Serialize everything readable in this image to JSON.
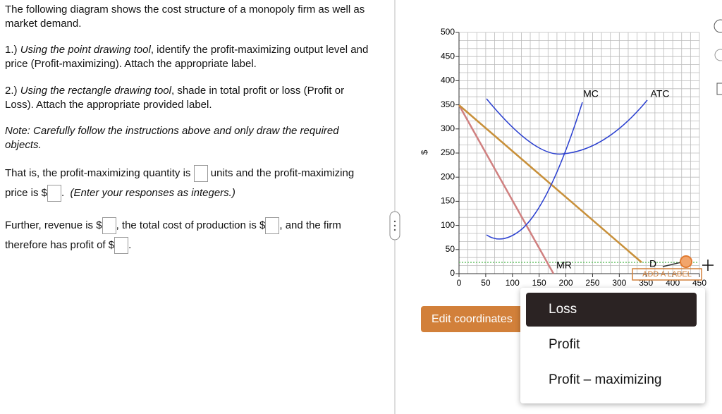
{
  "instructions": {
    "intro": "The following diagram shows the cost structure of a monopoly firm as well as market demand.",
    "step1": {
      "number": "1.)",
      "tool": "Using the point drawing tool",
      "text": ", identify the profit-maximizing output level and price (Profit-maximizing). Attach the appropriate label."
    },
    "step2": {
      "number": "2.)",
      "tool": "Using the rectangle drawing tool",
      "text": ", shade in total profit or loss (Profit or Loss). Attach the appropriate provided label."
    },
    "note": "Note: Carefully follow the instructions above and only draw the required objects.",
    "question1": {
      "part1": "That is, the profit-maximizing quantity is",
      "part2": "units and the profit-maximizing price is $",
      "part3": ".",
      "hint": "(Enter your responses as integers.)"
    },
    "question2": {
      "part1": "Further, revenue is $",
      "part2": ", the total cost of production is $",
      "part3": ", and the firm therefore has profit of $",
      "part4": "."
    }
  },
  "graph": {
    "y_label": "$",
    "xlim": [
      0,
      450
    ],
    "ylim": [
      0,
      500
    ],
    "xticks": [
      0,
      50,
      100,
      150,
      200,
      250,
      300,
      350,
      400,
      450
    ],
    "yticks": [
      0,
      50,
      100,
      150,
      200,
      250,
      300,
      350,
      400,
      450,
      500
    ],
    "curve_labels": {
      "mc": "MC",
      "atc": "ATC",
      "mr": "MR",
      "d": "D"
    },
    "add_label": "ADD A LABEL"
  },
  "edit_button": "Edit coordinates",
  "label_menu": [
    "Loss",
    "Profit",
    "Profit – maximizing"
  ]
}
